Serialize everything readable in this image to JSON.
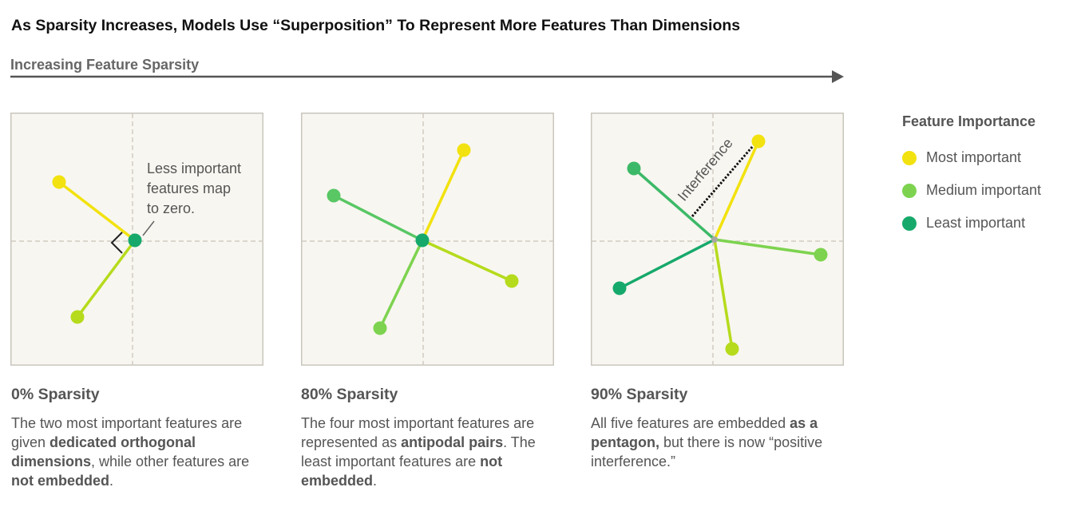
{
  "title": "As Sparsity Increases, Models Use “Superposition” To Represent More Features Than Dimensions",
  "axis_arrow": {
    "label": "Increasing Feature Sparsity"
  },
  "colors": {
    "most": "#f2e20f",
    "medium": "#7dd34f",
    "least": "#16a96b",
    "mid_line": "#b5db1c",
    "panel_bg": "#f8f6f0",
    "panel_border": "#c9c6bd",
    "grid": "#cfccc3"
  },
  "panels": [
    {
      "label": "0% Sparsity",
      "desc_parts": [
        "The two most important features are given ",
        "dedicated orthogonal dimensions",
        ", while other features are ",
        "not embedded",
        "."
      ],
      "annotation_lines": [
        "Less important",
        "features map",
        "to zero."
      ]
    },
    {
      "label": "80% Sparsity",
      "desc_parts": [
        "The four most important features are represented as ",
        "antipodal pairs",
        ". The least important features are ",
        "not embedded",
        "."
      ]
    },
    {
      "label": "90% Sparsity",
      "desc_parts": [
        "All five features are embedded ",
        "as a pentagon,",
        " but there is now “positive interference.”"
      ],
      "annotation": "Interference"
    }
  ],
  "legend": {
    "title": "Feature Importance",
    "items": [
      {
        "label": "Most important",
        "color": "#f2e20f"
      },
      {
        "label": "Medium important",
        "color": "#7dd34f"
      },
      {
        "label": "Least important",
        "color": "#16a96b"
      }
    ]
  }
}
